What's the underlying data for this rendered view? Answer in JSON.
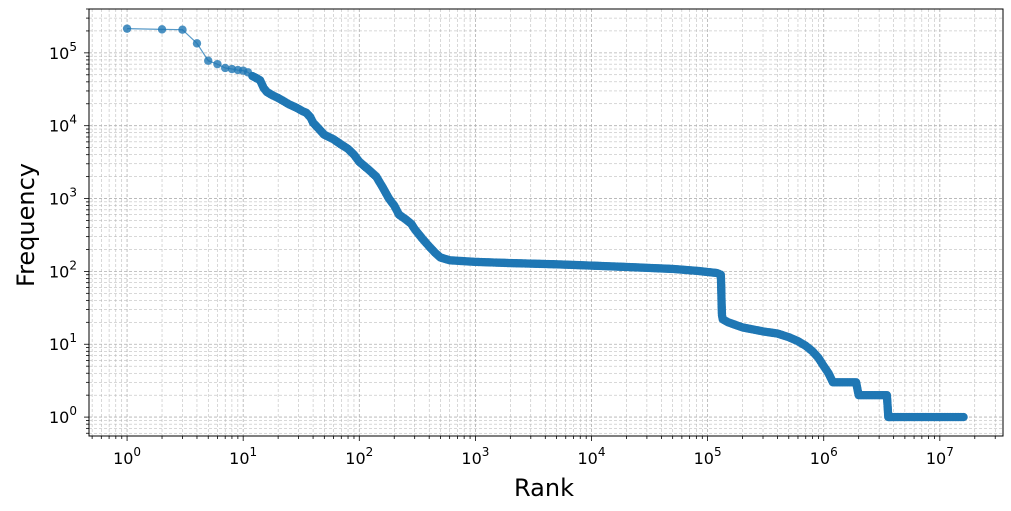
{
  "chart_data": {
    "type": "scatter",
    "xlabel": "Rank",
    "ylabel": "Frequency",
    "x_scale": "log",
    "y_scale": "log",
    "xlim": [
      0.47,
      35000000
    ],
    "ylim": [
      0.55,
      400000
    ],
    "grid": true,
    "grid_minor": true,
    "x_ticks": [
      {
        "value": 1,
        "base": "10",
        "exp": "0"
      },
      {
        "value": 10,
        "base": "10",
        "exp": "1"
      },
      {
        "value": 100,
        "base": "10",
        "exp": "2"
      },
      {
        "value": 1000,
        "base": "10",
        "exp": "3"
      },
      {
        "value": 10000,
        "base": "10",
        "exp": "4"
      },
      {
        "value": 100000,
        "base": "10",
        "exp": "5"
      },
      {
        "value": 1000000,
        "base": "10",
        "exp": "6"
      },
      {
        "value": 10000000,
        "base": "10",
        "exp": "7"
      }
    ],
    "y_ticks": [
      {
        "value": 1,
        "base": "10",
        "exp": "0"
      },
      {
        "value": 10,
        "base": "10",
        "exp": "1"
      },
      {
        "value": 100,
        "base": "10",
        "exp": "2"
      },
      {
        "value": 1000,
        "base": "10",
        "exp": "3"
      },
      {
        "value": 10000,
        "base": "10",
        "exp": "4"
      },
      {
        "value": 100000,
        "base": "10",
        "exp": "5"
      }
    ],
    "colors": {
      "series": "#1f77b4",
      "grid": "#b0b0b0",
      "axis": "#000000"
    },
    "series": [
      {
        "marker": "circle",
        "points": [
          [
            1,
            215000
          ],
          [
            2,
            210000
          ],
          [
            3,
            208000
          ],
          [
            4,
            135000
          ],
          [
            5,
            78000
          ],
          [
            6,
            70000
          ],
          [
            7,
            62000
          ],
          [
            8,
            60000
          ],
          [
            9,
            58000
          ],
          [
            10,
            57000
          ],
          [
            11,
            54000
          ],
          [
            12,
            48000
          ],
          [
            13,
            45000
          ],
          [
            14,
            42000
          ],
          [
            15,
            33000
          ],
          [
            16,
            29000
          ],
          [
            18,
            26000
          ],
          [
            20,
            24000
          ],
          [
            22,
            22000
          ],
          [
            25,
            19500
          ],
          [
            28,
            18000
          ],
          [
            30,
            17000
          ],
          [
            32,
            16000
          ],
          [
            35,
            15000
          ],
          [
            38,
            13000
          ],
          [
            40,
            11000
          ],
          [
            45,
            9000
          ],
          [
            50,
            7500
          ],
          [
            60,
            6500
          ],
          [
            70,
            5500
          ],
          [
            80,
            4800
          ],
          [
            90,
            4000
          ],
          [
            100,
            3200
          ],
          [
            120,
            2500
          ],
          [
            140,
            2000
          ],
          [
            160,
            1400
          ],
          [
            180,
            1000
          ],
          [
            200,
            800
          ],
          [
            220,
            600
          ],
          [
            250,
            520
          ],
          [
            280,
            450
          ],
          [
            300,
            380
          ],
          [
            350,
            280
          ],
          [
            400,
            220
          ],
          [
            450,
            180
          ],
          [
            500,
            155
          ],
          [
            600,
            142
          ],
          [
            800,
            138
          ],
          [
            1000,
            135
          ],
          [
            2000,
            130
          ],
          [
            5000,
            125
          ],
          [
            10000,
            120
          ],
          [
            20000,
            115
          ],
          [
            50000,
            108
          ],
          [
            80000,
            102
          ],
          [
            100000,
            98
          ],
          [
            120000,
            95
          ],
          [
            130000,
            90
          ],
          [
            131000,
            60
          ],
          [
            132000,
            35
          ],
          [
            133000,
            25
          ],
          [
            135000,
            22
          ],
          [
            150000,
            20
          ],
          [
            200000,
            17
          ],
          [
            300000,
            15
          ],
          [
            400000,
            14
          ],
          [
            500000,
            12.5
          ],
          [
            600000,
            11
          ],
          [
            700000,
            9.5
          ],
          [
            800000,
            8
          ],
          [
            900000,
            6.5
          ],
          [
            1000000,
            5
          ],
          [
            1100000,
            4
          ],
          [
            1200000,
            3
          ],
          [
            1500000,
            3
          ],
          [
            1900000,
            3
          ],
          [
            2000000,
            2
          ],
          [
            3000000,
            2
          ],
          [
            3500000,
            2
          ],
          [
            3600000,
            1
          ],
          [
            5000000,
            1
          ],
          [
            8000000,
            1
          ],
          [
            12000000,
            1
          ],
          [
            16000000,
            1
          ]
        ]
      }
    ]
  }
}
